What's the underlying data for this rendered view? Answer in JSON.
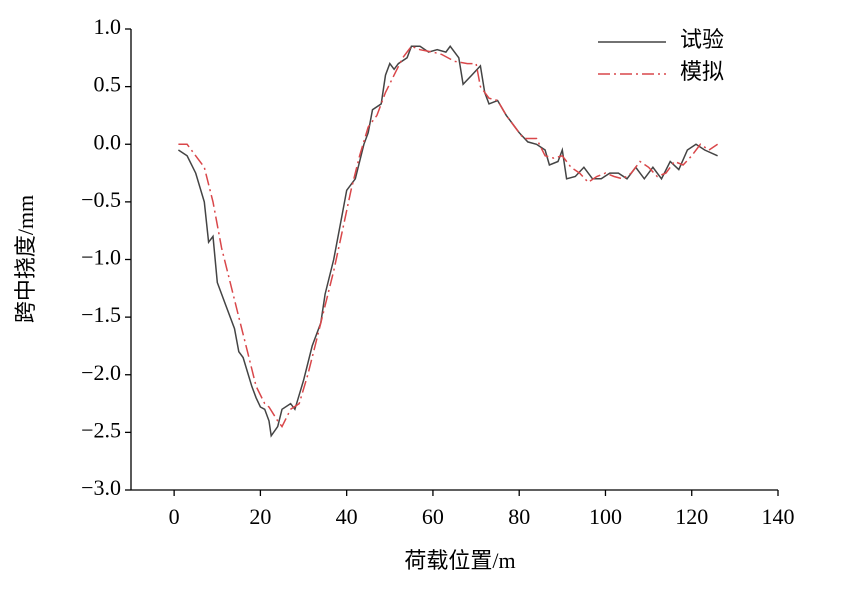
{
  "chart_data": {
    "type": "line",
    "x_label": "荷载位置/m",
    "y_label": "跨中挠度/mm",
    "xlim": [
      -10,
      140
    ],
    "xticks": [
      0,
      20,
      40,
      60,
      80,
      100,
      120,
      140
    ],
    "ylim": [
      -3,
      1
    ],
    "yticks": [
      {
        "value": 1,
        "label": "1.0"
      },
      {
        "value": 0.5,
        "label": "0.5"
      },
      {
        "value": 0,
        "label": "0.0"
      },
      {
        "value": -0.5,
        "label": "−0.5"
      },
      {
        "value": -1,
        "label": "−1.0"
      },
      {
        "value": -1.5,
        "label": "−1.5"
      },
      {
        "value": -2,
        "label": "−2.0"
      },
      {
        "value": -2.5,
        "label": "−2.5"
      },
      {
        "value": -3,
        "label": "−3.0"
      }
    ],
    "legend": "upper right",
    "series": [
      {
        "name": "试验",
        "color": "#444444",
        "dash": "solid",
        "x": [
          1,
          3,
          5,
          7,
          8,
          9,
          10,
          12,
          14,
          15,
          16,
          18,
          19,
          20,
          21,
          22,
          22.5,
          24,
          25,
          27,
          28,
          30,
          32,
          34,
          35,
          37,
          39,
          40,
          42,
          44,
          45,
          46,
          48,
          49,
          50,
          51,
          52,
          54,
          55,
          57,
          59,
          61,
          63,
          64,
          66,
          67,
          69,
          71,
          72,
          73,
          75,
          77,
          80,
          82,
          84,
          86,
          87,
          89,
          90,
          91,
          93,
          95,
          97,
          99,
          101,
          103,
          105,
          107,
          109,
          111,
          113,
          115,
          117,
          119,
          121,
          123,
          126
        ],
        "values": [
          -0.05,
          -0.1,
          -0.25,
          -0.5,
          -0.85,
          -0.8,
          -1.2,
          -1.4,
          -1.6,
          -1.8,
          -1.85,
          -2.1,
          -2.2,
          -2.28,
          -2.3,
          -2.4,
          -2.53,
          -2.45,
          -2.3,
          -2.25,
          -2.3,
          -2.05,
          -1.75,
          -1.55,
          -1.3,
          -1.0,
          -0.6,
          -0.4,
          -0.3,
          0.0,
          0.1,
          0.3,
          0.35,
          0.6,
          0.7,
          0.65,
          0.7,
          0.75,
          0.85,
          0.85,
          0.8,
          0.82,
          0.8,
          0.85,
          0.75,
          0.52,
          0.6,
          0.68,
          0.45,
          0.35,
          0.38,
          0.25,
          0.1,
          0.02,
          0.0,
          -0.05,
          -0.18,
          -0.15,
          -0.05,
          -0.3,
          -0.28,
          -0.2,
          -0.3,
          -0.3,
          -0.25,
          -0.25,
          -0.3,
          -0.2,
          -0.3,
          -0.2,
          -0.3,
          -0.15,
          -0.22,
          -0.05,
          0.0,
          -0.05,
          -0.1
        ]
      },
      {
        "name": "模拟",
        "color": "#d9474a",
        "dash": "dashdot",
        "x": [
          1,
          3,
          5,
          7,
          9,
          11,
          13,
          15,
          17,
          19,
          21,
          22,
          24,
          25,
          27,
          29,
          31,
          33,
          35,
          37,
          39,
          41,
          43,
          45,
          47,
          49,
          51,
          53,
          55,
          57,
          60,
          62,
          65,
          68,
          70,
          71,
          73,
          75,
          77,
          79,
          81,
          84,
          86,
          88,
          90,
          92,
          94,
          96,
          98,
          100,
          102,
          104,
          106,
          108,
          110,
          112,
          114,
          116,
          118,
          120,
          122,
          124,
          126
        ],
        "values": [
          0,
          0,
          -0.1,
          -0.2,
          -0.5,
          -0.9,
          -1.2,
          -1.5,
          -1.8,
          -2.1,
          -2.25,
          -2.28,
          -2.4,
          -2.45,
          -2.3,
          -2.25,
          -2.0,
          -1.7,
          -1.4,
          -1.1,
          -0.75,
          -0.4,
          -0.1,
          0.15,
          0.25,
          0.45,
          0.6,
          0.75,
          0.85,
          0.82,
          0.8,
          0.78,
          0.72,
          0.7,
          0.7,
          0.5,
          0.4,
          0.38,
          0.25,
          0.15,
          0.05,
          0.05,
          -0.1,
          -0.12,
          -0.1,
          -0.2,
          -0.25,
          -0.33,
          -0.28,
          -0.25,
          -0.28,
          -0.3,
          -0.25,
          -0.15,
          -0.2,
          -0.28,
          -0.25,
          -0.15,
          -0.18,
          -0.1,
          0.0,
          -0.05,
          0.0
        ]
      }
    ]
  }
}
